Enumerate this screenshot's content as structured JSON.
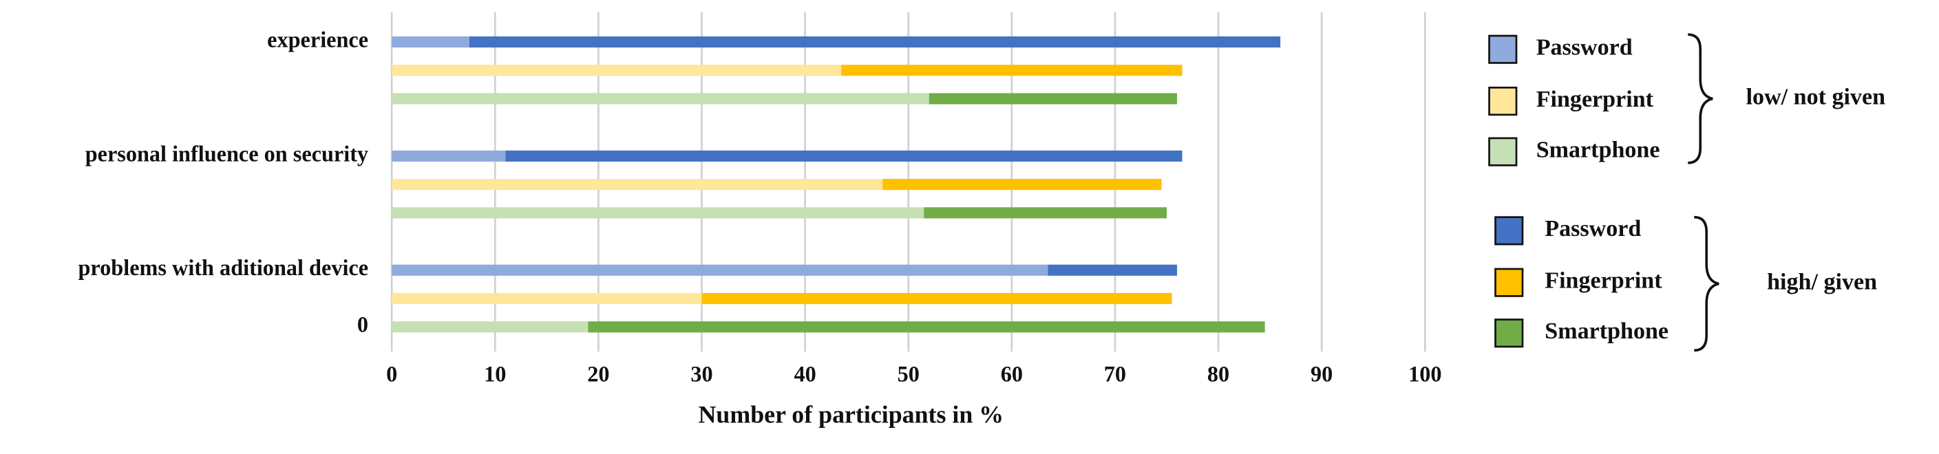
{
  "chart_data": {
    "type": "stacked-barh",
    "x_label": "Number of participants in %",
    "categories": [
      "experience",
      null,
      null,
      "personal influence on security",
      null,
      null,
      "problems with aditional device",
      null,
      "0"
    ],
    "xlim": [
      0,
      100
    ],
    "xticks": [
      0,
      10,
      20,
      30,
      40,
      50,
      60,
      70,
      80,
      90,
      100
    ],
    "grid": true,
    "series_groups": [
      {
        "label": "low/ not given",
        "series": [
          {
            "name": "Password",
            "color": "#8faadc",
            "values": [
              7.5,
              null,
              null,
              11,
              null,
              null,
              63.5,
              null,
              null
            ]
          },
          {
            "name": "Fingerprint",
            "color": "#ffe699",
            "values": [
              null,
              43.5,
              null,
              null,
              47.5,
              null,
              null,
              30,
              null
            ]
          },
          {
            "name": "Smartphone",
            "color": "#c5e0b4",
            "values": [
              null,
              null,
              52,
              null,
              null,
              51.5,
              null,
              null,
              19
            ]
          }
        ]
      },
      {
        "label": "high/ given",
        "series": [
          {
            "name": "Password",
            "color": "#4472c4",
            "values": [
              78.5,
              null,
              null,
              65.5,
              null,
              null,
              12.5,
              null,
              null
            ]
          },
          {
            "name": "Fingerprint",
            "color": "#ffc000",
            "values": [
              null,
              33,
              null,
              null,
              27,
              null,
              null,
              45.5,
              null
            ]
          },
          {
            "name": "Smartphone",
            "color": "#70ad47",
            "values": [
              null,
              null,
              24,
              null,
              null,
              23.5,
              null,
              null,
              65.5
            ]
          }
        ]
      }
    ]
  }
}
